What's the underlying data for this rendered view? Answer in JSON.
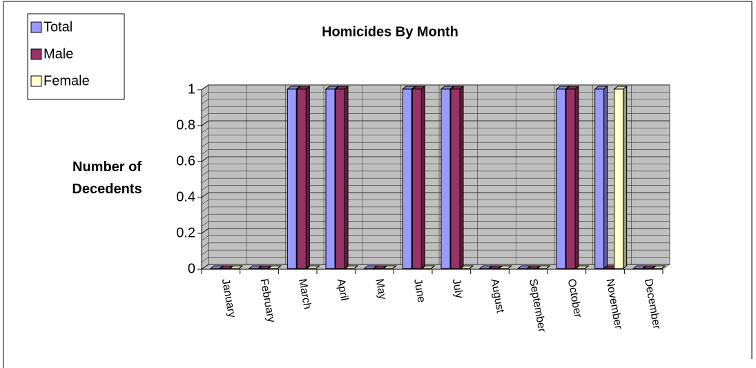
{
  "chart_data": {
    "type": "bar3d",
    "title": "Homicides By Month",
    "y_label": "Number of Decedents",
    "categories": [
      "January",
      "February",
      "March",
      "April",
      "May",
      "June",
      "July",
      "August",
      "September",
      "October",
      "November",
      "December"
    ],
    "series": [
      {
        "name": "Total",
        "color": "#9999ff",
        "values": [
          0,
          0,
          1,
          1,
          0,
          1,
          1,
          0,
          0,
          1,
          1,
          0
        ]
      },
      {
        "name": "Male",
        "color": "#993366",
        "values": [
          0,
          0,
          1,
          1,
          0,
          1,
          1,
          0,
          0,
          1,
          0,
          0
        ]
      },
      {
        "name": "Female",
        "color": "#ffffcc",
        "values": [
          0,
          0,
          0,
          0,
          0,
          0,
          0,
          0,
          0,
          0,
          1,
          0
        ]
      }
    ],
    "ylim": [
      0,
      1
    ],
    "yticks": [
      0,
      0.2,
      0.4,
      0.6,
      0.8,
      1
    ],
    "grid": true,
    "legend": "top-left"
  }
}
